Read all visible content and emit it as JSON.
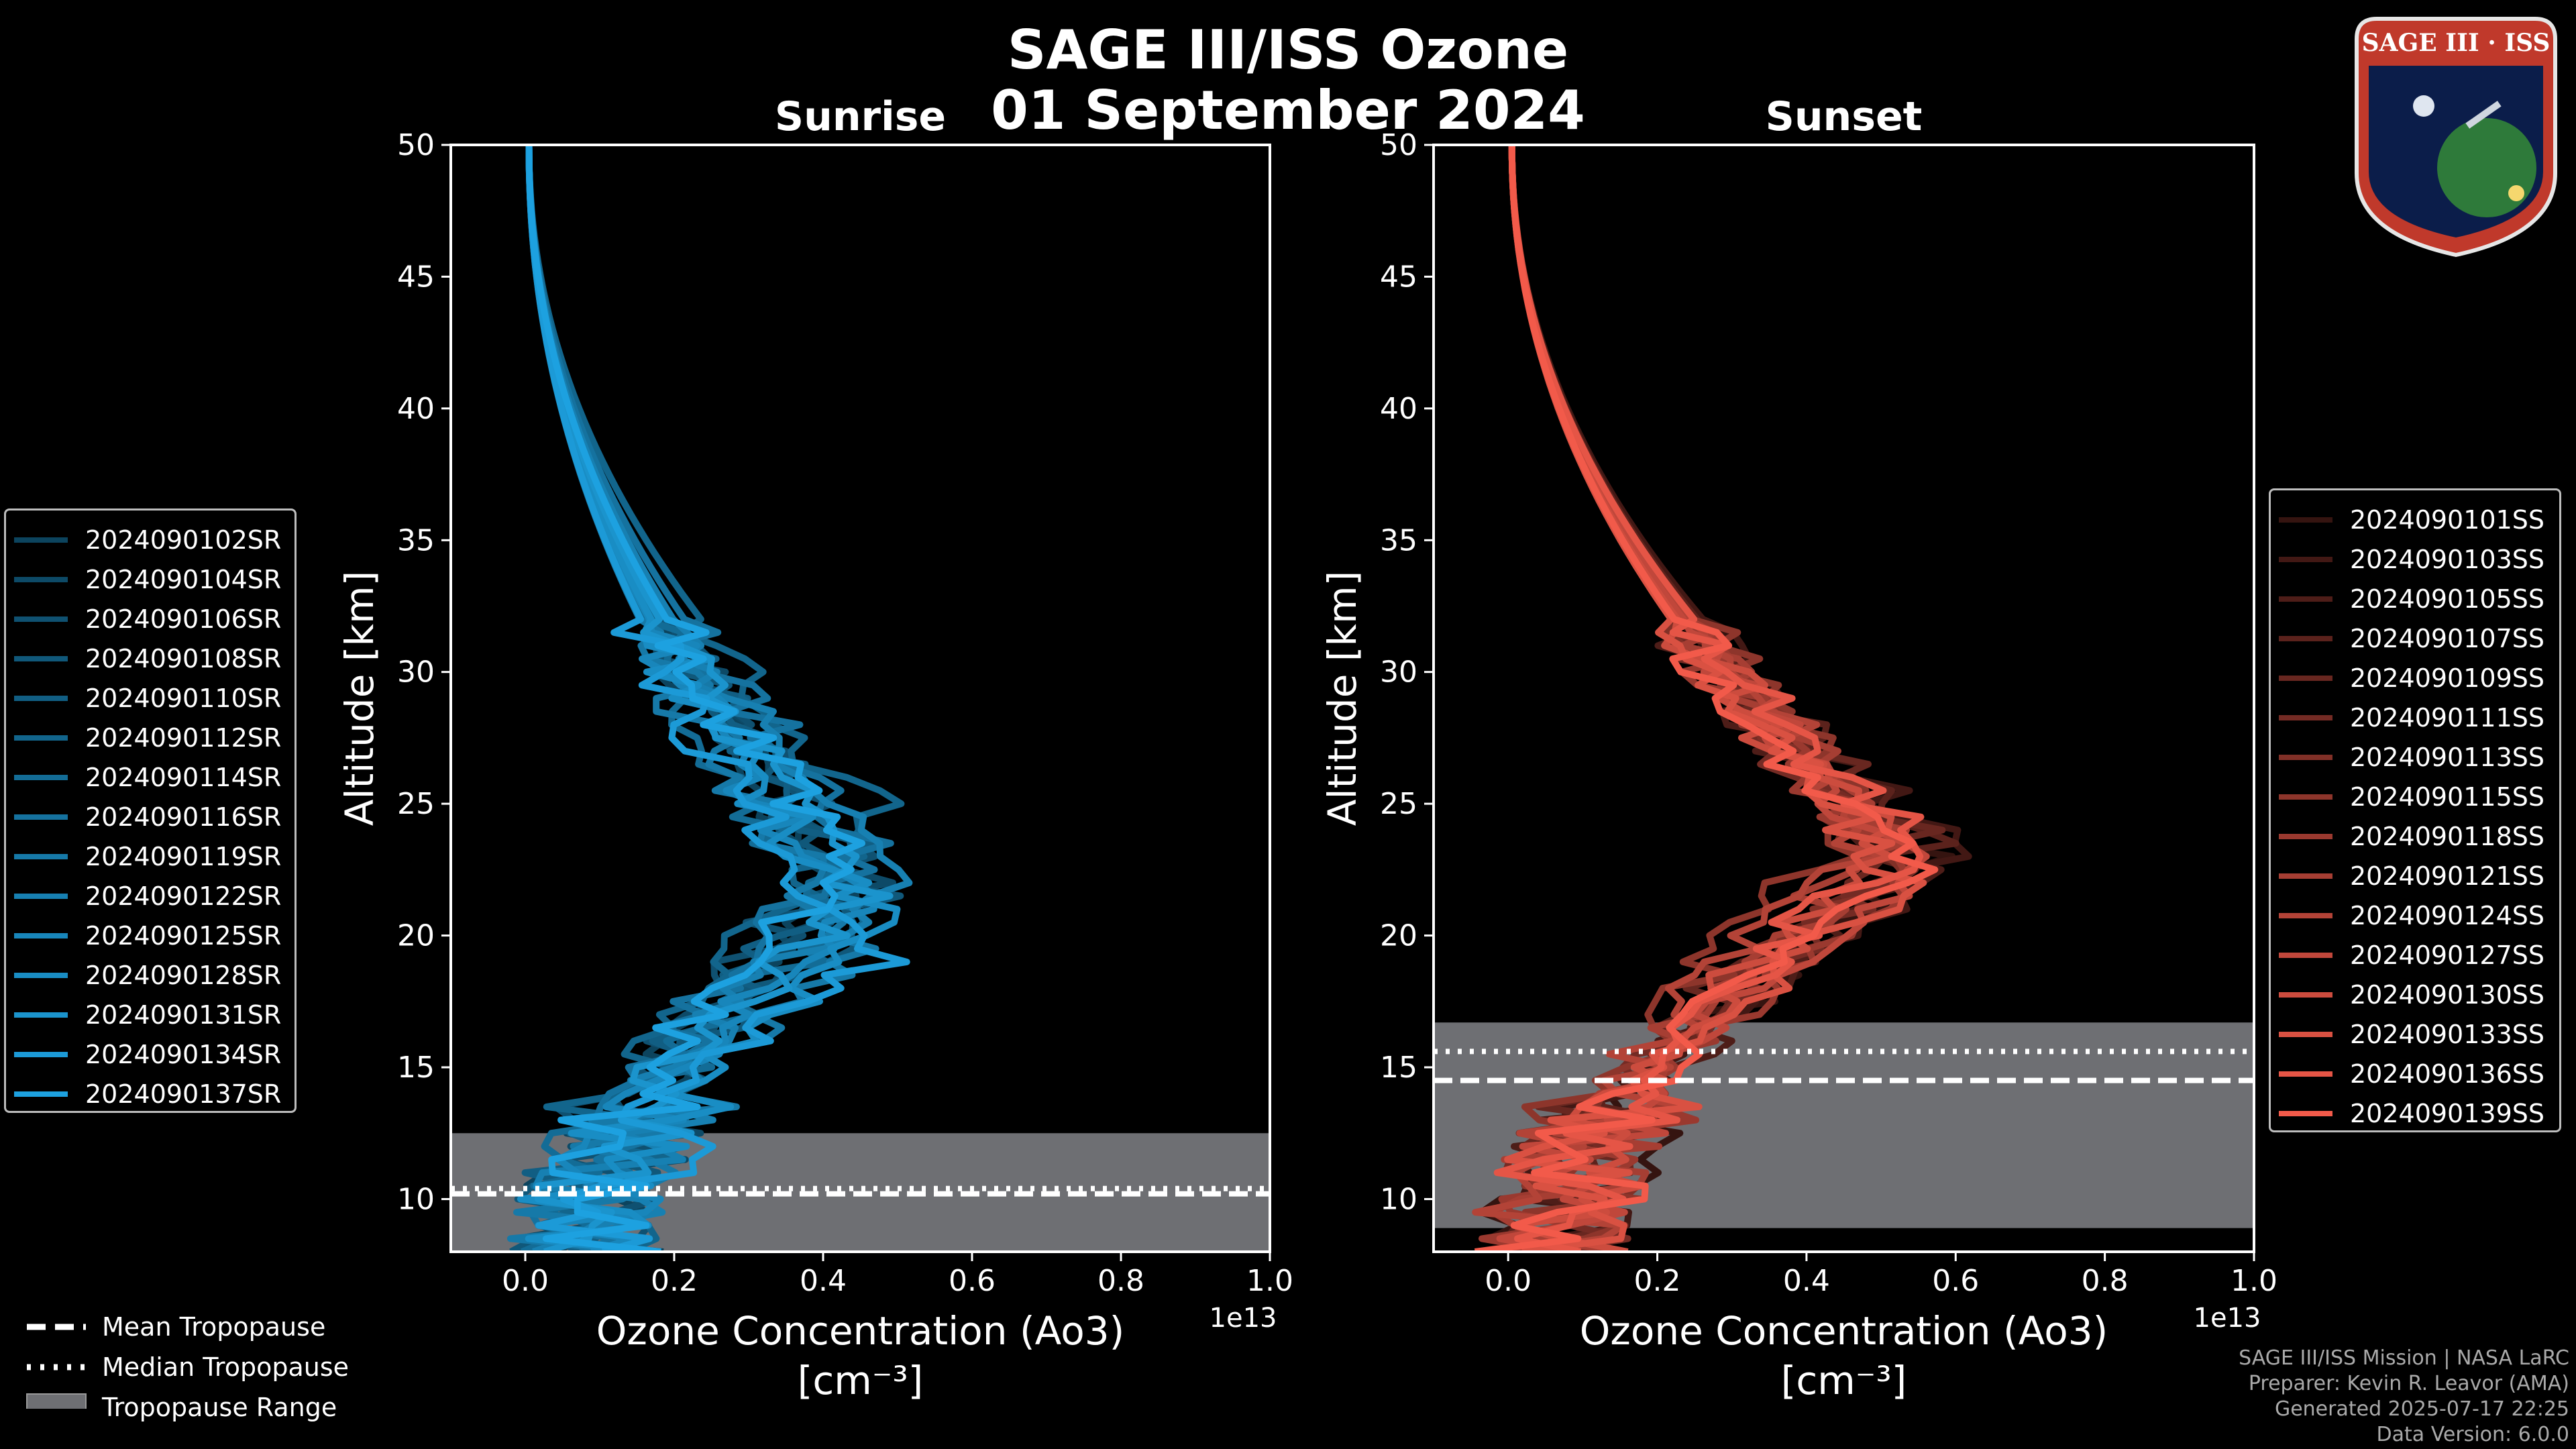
{
  "header": {
    "title_line1": "SAGE III/ISS Ozone",
    "title_line2": "01 September 2024"
  },
  "logo": {
    "text": "SAGE III · ISS"
  },
  "colors": {
    "sunrise_base": "#1da1e0",
    "sunset_base": "#f25a4a",
    "tropo_fill": "#6e6f73",
    "axes": "#ffffff"
  },
  "chart_data": [
    {
      "type": "line",
      "title": "Sunrise",
      "xlabel": "Ozone Concentration (Ao3)",
      "xunit": "[cm⁻³]",
      "ylabel": "Altitude [km]",
      "xlim": [
        -0.1,
        1.0
      ],
      "ylim": [
        8,
        50
      ],
      "x_scale_label": "1e13",
      "xticks": [
        0.0,
        0.2,
        0.4,
        0.6,
        0.8,
        1.0
      ],
      "yticks": [
        10,
        15,
        20,
        25,
        30,
        35,
        40,
        45,
        50
      ],
      "tropopause": {
        "mean": 10.2,
        "median": 10.4,
        "range": [
          8.0,
          12.5
        ]
      },
      "series": [
        {
          "name": "2024090102SR",
          "peak_x": 0.42,
          "peak_alt": 21.5
        },
        {
          "name": "2024090104SR",
          "peak_x": 0.45,
          "peak_alt": 22.0
        },
        {
          "name": "2024090106SR",
          "peak_x": 0.44,
          "peak_alt": 23.0
        },
        {
          "name": "2024090108SR",
          "peak_x": 0.47,
          "peak_alt": 21.0
        },
        {
          "name": "2024090110SR",
          "peak_x": 0.46,
          "peak_alt": 22.5
        },
        {
          "name": "2024090112SR",
          "peak_x": 0.48,
          "peak_alt": 24.5
        },
        {
          "name": "2024090114SR",
          "peak_x": 0.43,
          "peak_alt": 20.5
        },
        {
          "name": "2024090116SR",
          "peak_x": 0.47,
          "peak_alt": 23.5
        },
        {
          "name": "2024090119SR",
          "peak_x": 0.45,
          "peak_alt": 19.5
        },
        {
          "name": "2024090122SR",
          "peak_x": 0.49,
          "peak_alt": 22.0
        },
        {
          "name": "2024090125SR",
          "peak_x": 0.44,
          "peak_alt": 21.0
        },
        {
          "name": "2024090128SR",
          "peak_x": 0.48,
          "peak_alt": 20.0
        },
        {
          "name": "2024090131SR",
          "peak_x": 0.46,
          "peak_alt": 21.5
        },
        {
          "name": "2024090134SR",
          "peak_x": 0.47,
          "peak_alt": 19.0
        },
        {
          "name": "2024090137SR",
          "peak_x": 0.45,
          "peak_alt": 22.5
        }
      ]
    },
    {
      "type": "line",
      "title": "Sunset",
      "xlabel": "Ozone Concentration (Ao3)",
      "xunit": "[cm⁻³]",
      "ylabel": "Altitude [km]",
      "xlim": [
        -0.1,
        1.0
      ],
      "ylim": [
        8,
        50
      ],
      "x_scale_label": "1e13",
      "xticks": [
        0.0,
        0.2,
        0.4,
        0.6,
        0.8,
        1.0
      ],
      "yticks": [
        10,
        15,
        20,
        25,
        30,
        35,
        40,
        45,
        50
      ],
      "tropopause": {
        "mean": 14.5,
        "median": 15.6,
        "range": [
          8.9,
          16.7
        ]
      },
      "series": [
        {
          "name": "2024090101SS",
          "peak_x": 0.57,
          "peak_alt": 22.5
        },
        {
          "name": "2024090103SS",
          "peak_x": 0.6,
          "peak_alt": 23.0
        },
        {
          "name": "2024090105SS",
          "peak_x": 0.55,
          "peak_alt": 22.0
        },
        {
          "name": "2024090107SS",
          "peak_x": 0.56,
          "peak_alt": 23.5
        },
        {
          "name": "2024090109SS",
          "peak_x": 0.53,
          "peak_alt": 24.0
        },
        {
          "name": "2024090111SS",
          "peak_x": 0.52,
          "peak_alt": 22.5
        },
        {
          "name": "2024090113SS",
          "peak_x": 0.54,
          "peak_alt": 23.0
        },
        {
          "name": "2024090115SS",
          "peak_x": 0.5,
          "peak_alt": 24.5
        },
        {
          "name": "2024090118SS",
          "peak_x": 0.55,
          "peak_alt": 22.0
        },
        {
          "name": "2024090121SS",
          "peak_x": 0.53,
          "peak_alt": 23.5
        },
        {
          "name": "2024090124SS",
          "peak_x": 0.51,
          "peak_alt": 24.0
        },
        {
          "name": "2024090127SS",
          "peak_x": 0.56,
          "peak_alt": 22.5
        },
        {
          "name": "2024090130SS",
          "peak_x": 0.52,
          "peak_alt": 23.0
        },
        {
          "name": "2024090133SS",
          "peak_x": 0.54,
          "peak_alt": 22.0
        },
        {
          "name": "2024090136SS",
          "peak_x": 0.55,
          "peak_alt": 23.5
        },
        {
          "name": "2024090139SS",
          "peak_x": 0.53,
          "peak_alt": 22.5
        }
      ]
    }
  ],
  "tropo_legend": {
    "mean": "Mean Tropopause",
    "median": "Median Tropopause",
    "range": "Tropopause Range"
  },
  "footer": {
    "line1": "SAGE III/ISS Mission | NASA LaRC",
    "line2": "Preparer: Kevin R. Leavor (AMA)",
    "line3": "Generated 2025-07-17 22:25",
    "line4": "Data Version: 6.0.0"
  }
}
